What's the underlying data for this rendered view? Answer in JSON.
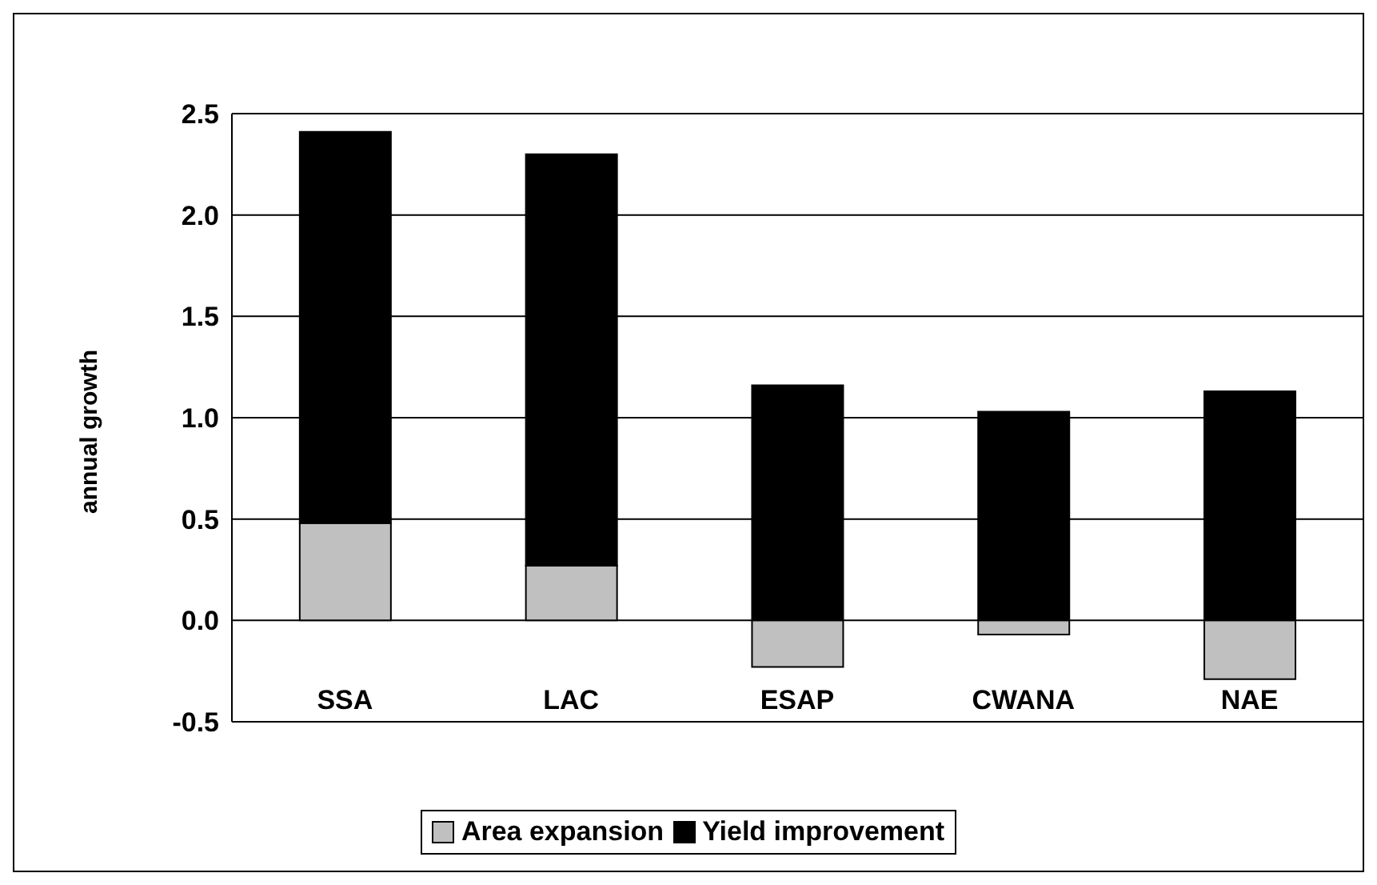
{
  "chart_data": {
    "type": "bar",
    "stacked": true,
    "ylabel": "annual growth",
    "categories": [
      "SSA",
      "LAC",
      "ESAP",
      "CWANA",
      "NAE"
    ],
    "series": [
      {
        "name": "Area expansion",
        "color": "#c0c0c0",
        "values": [
          0.48,
          0.27,
          -0.23,
          -0.07,
          -0.29
        ]
      },
      {
        "name": "Yield improvement",
        "color": "#000000",
        "values": [
          1.93,
          2.03,
          1.16,
          1.03,
          1.13
        ]
      }
    ],
    "ylim": [
      -0.5,
      2.5
    ],
    "yticks": [
      -0.5,
      {
        "value": 0,
        "label": "0.0"
      },
      0.5,
      {
        "value": 1,
        "label": "1.0"
      },
      1.5,
      {
        "value": 2,
        "label": "2.0"
      },
      2.5
    ],
    "grid": "y",
    "legend": "bottom"
  }
}
